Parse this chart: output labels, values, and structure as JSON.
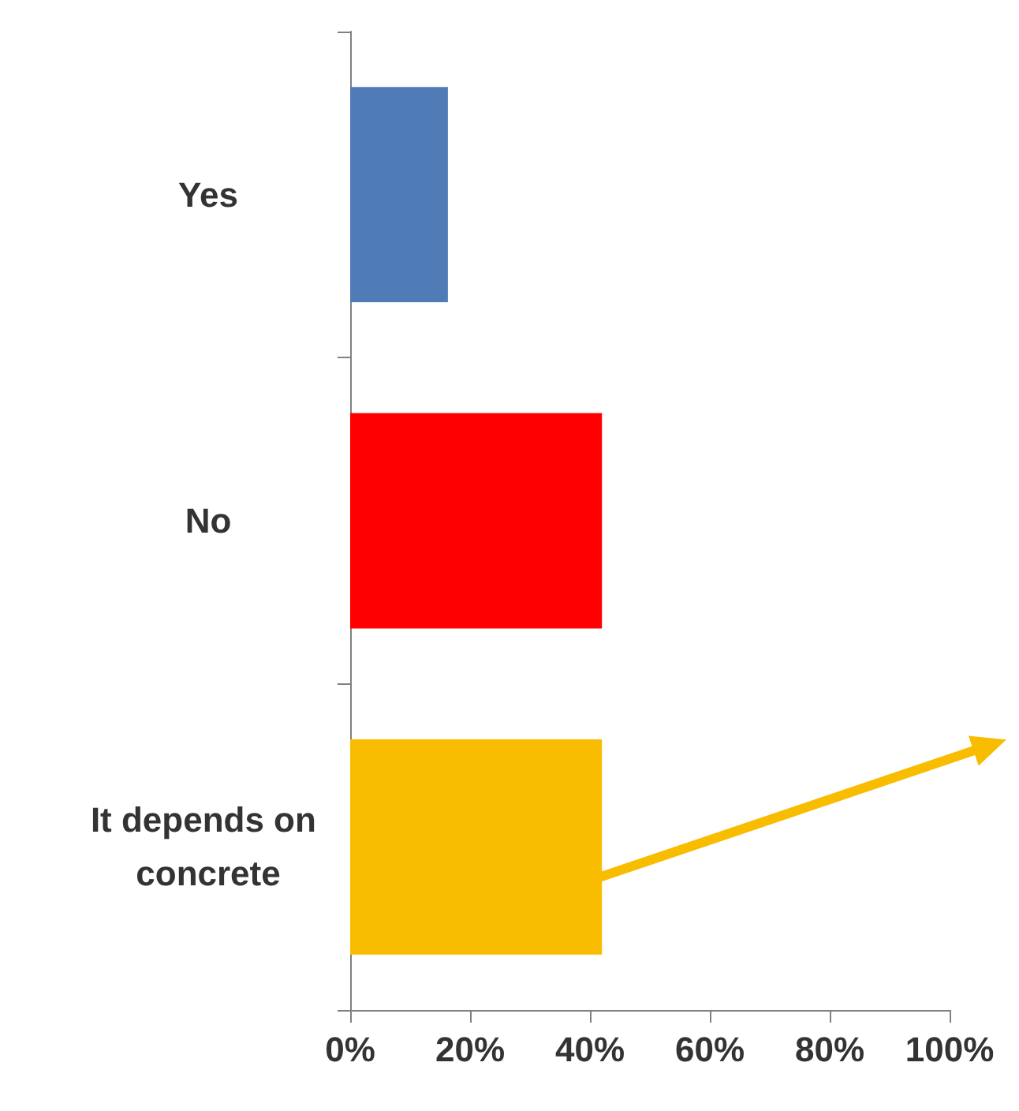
{
  "chart_data": {
    "type": "bar",
    "orientation": "horizontal",
    "categories": [
      "Yes",
      "No",
      "It depends on concrete"
    ],
    "values": [
      16.3,
      42,
      42
    ],
    "colors": [
      "#4f7bb6",
      "#ff0000",
      "#f8bc00"
    ],
    "xlim": [
      0,
      100
    ],
    "xticks": [
      {
        "value": 0,
        "label": "0%"
      },
      {
        "value": 20,
        "label": "20%"
      },
      {
        "value": 40,
        "label": "40%"
      },
      {
        "value": 60,
        "label": "60%"
      },
      {
        "value": 80,
        "label": "80%"
      },
      {
        "value": 100,
        "label": "100%"
      }
    ],
    "grid": false
  }
}
